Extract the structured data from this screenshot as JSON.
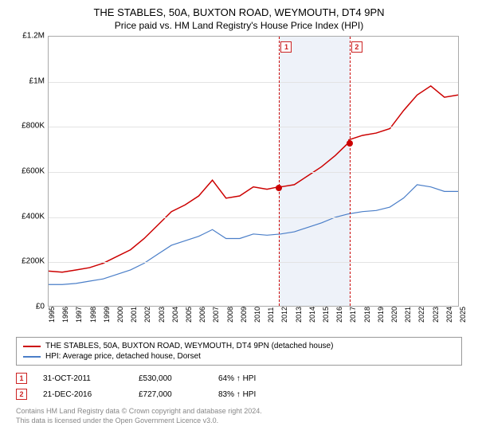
{
  "title_main": "THE STABLES, 50A, BUXTON ROAD, WEYMOUTH, DT4 9PN",
  "title_sub": "Price paid vs. HM Land Registry's House Price Index (HPI)",
  "chart": {
    "type": "line",
    "xlim": [
      1995,
      2025
    ],
    "ylim": [
      0,
      1200000
    ],
    "ytick_step": 200000,
    "yticklabels": [
      "£0",
      "£200K",
      "£400K",
      "£600K",
      "£800K",
      "£1M",
      "£1.2M"
    ],
    "xticks": [
      1995,
      1996,
      1997,
      1998,
      1999,
      2000,
      2001,
      2002,
      2003,
      2004,
      2005,
      2006,
      2007,
      2008,
      2009,
      2010,
      2011,
      2012,
      2013,
      2014,
      2015,
      2016,
      2017,
      2018,
      2019,
      2020,
      2021,
      2022,
      2023,
      2024,
      2025
    ],
    "background_color": "#ffffff",
    "grid_color": "#e3e3e3",
    "shade_band": {
      "x_from": 2011.83,
      "x_to": 2016.97,
      "color": "#eef2f9"
    },
    "series": [
      {
        "name": "price_paid",
        "color": "#cc0000",
        "line_width": 1.5,
        "data": [
          [
            1995,
            155000
          ],
          [
            1996,
            150000
          ],
          [
            1997,
            160000
          ],
          [
            1998,
            170000
          ],
          [
            1999,
            190000
          ],
          [
            2000,
            220000
          ],
          [
            2001,
            250000
          ],
          [
            2002,
            300000
          ],
          [
            2003,
            360000
          ],
          [
            2004,
            420000
          ],
          [
            2005,
            450000
          ],
          [
            2006,
            490000
          ],
          [
            2007,
            560000
          ],
          [
            2008,
            480000
          ],
          [
            2009,
            490000
          ],
          [
            2010,
            530000
          ],
          [
            2011,
            520000
          ],
          [
            2011.83,
            530000
          ],
          [
            2012,
            530000
          ],
          [
            2013,
            540000
          ],
          [
            2014,
            580000
          ],
          [
            2015,
            620000
          ],
          [
            2016,
            670000
          ],
          [
            2016.97,
            727000
          ],
          [
            2017,
            740000
          ],
          [
            2018,
            760000
          ],
          [
            2019,
            770000
          ],
          [
            2020,
            790000
          ],
          [
            2021,
            870000
          ],
          [
            2022,
            940000
          ],
          [
            2023,
            980000
          ],
          [
            2024,
            930000
          ],
          [
            2025,
            940000
          ]
        ]
      },
      {
        "name": "hpi",
        "color": "#4a7ec8",
        "line_width": 1.2,
        "data": [
          [
            1995,
            95000
          ],
          [
            1996,
            95000
          ],
          [
            1997,
            100000
          ],
          [
            1998,
            110000
          ],
          [
            1999,
            120000
          ],
          [
            2000,
            140000
          ],
          [
            2001,
            160000
          ],
          [
            2002,
            190000
          ],
          [
            2003,
            230000
          ],
          [
            2004,
            270000
          ],
          [
            2005,
            290000
          ],
          [
            2006,
            310000
          ],
          [
            2007,
            340000
          ],
          [
            2008,
            300000
          ],
          [
            2009,
            300000
          ],
          [
            2010,
            320000
          ],
          [
            2011,
            315000
          ],
          [
            2012,
            320000
          ],
          [
            2013,
            330000
          ],
          [
            2014,
            350000
          ],
          [
            2015,
            370000
          ],
          [
            2016,
            395000
          ],
          [
            2017,
            410000
          ],
          [
            2018,
            420000
          ],
          [
            2019,
            425000
          ],
          [
            2020,
            440000
          ],
          [
            2021,
            480000
          ],
          [
            2022,
            540000
          ],
          [
            2023,
            530000
          ],
          [
            2024,
            510000
          ],
          [
            2025,
            510000
          ]
        ]
      }
    ],
    "markers": [
      {
        "id": "1",
        "x": 2011.83,
        "y": 530000,
        "line_color": "#cc0000",
        "dot_color": "#cc0000"
      },
      {
        "id": "2",
        "x": 2016.97,
        "y": 727000,
        "line_color": "#cc0000",
        "dot_color": "#cc0000"
      }
    ]
  },
  "legend": {
    "items": [
      {
        "color": "#cc0000",
        "label": "THE STABLES, 50A, BUXTON ROAD, WEYMOUTH, DT4 9PN (detached house)"
      },
      {
        "color": "#4a7ec8",
        "label": "HPI: Average price, detached house, Dorset"
      }
    ]
  },
  "sales": [
    {
      "id": "1",
      "date": "31-OCT-2011",
      "price": "£530,000",
      "hpi": "64% ↑ HPI"
    },
    {
      "id": "2",
      "date": "21-DEC-2016",
      "price": "£727,000",
      "hpi": "83% ↑ HPI"
    }
  ],
  "footer": {
    "line1": "Contains HM Land Registry data © Crown copyright and database right 2024.",
    "line2": "This data is licensed under the Open Government Licence v3.0."
  }
}
